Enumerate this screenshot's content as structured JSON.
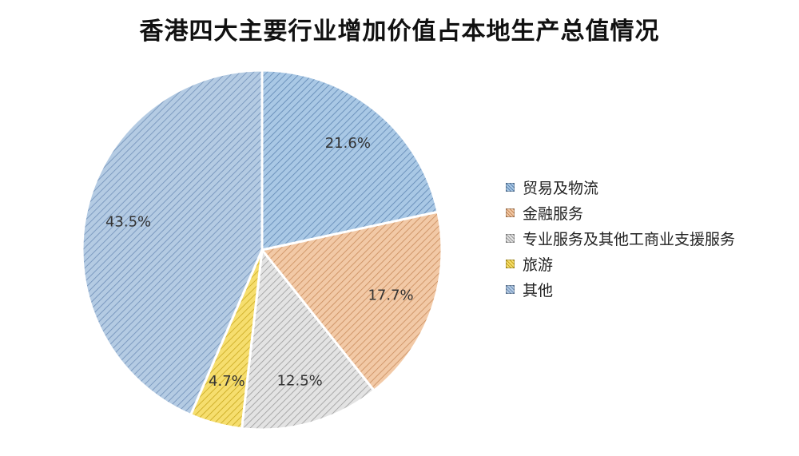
{
  "title": "香港四大主要行业增加价值占本地生产总值情况",
  "chart_data": {
    "type": "pie",
    "title": "香港四大主要行业增加价值占本地生产总值情况",
    "start_angle_deg": 0,
    "direction": "clockwise",
    "legend_position": "right",
    "slices": [
      {
        "label": "贸易及物流",
        "value": 21.6,
        "display": "21.6%",
        "color": "#a9c8e5",
        "hatch": "#5f86b3"
      },
      {
        "label": "金融服务",
        "value": 17.7,
        "display": "17.7%",
        "color": "#f2c9a6",
        "hatch": "#c98c5c"
      },
      {
        "label": "专业服务及其他工商业支援服务",
        "value": 12.5,
        "display": "12.5%",
        "color": "#e3e3e3",
        "hatch": "#9b9b9b"
      },
      {
        "label": "旅游",
        "value": 4.7,
        "display": "4.7%",
        "color": "#f6de6e",
        "hatch": "#c9a81f"
      },
      {
        "label": "其他",
        "value": 43.5,
        "display": "43.5%",
        "color": "#b4cbe3",
        "hatch": "#6f8fb8"
      }
    ]
  }
}
